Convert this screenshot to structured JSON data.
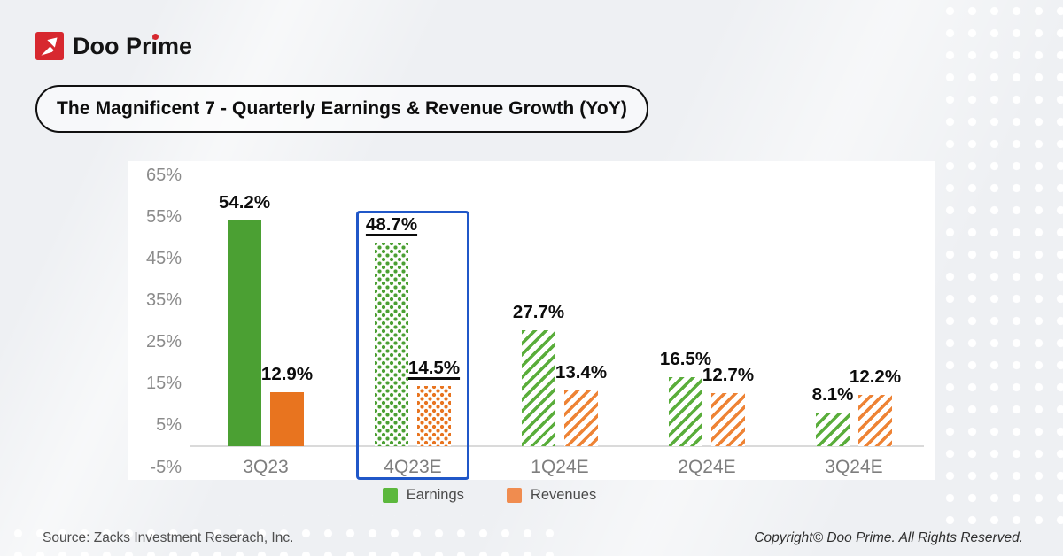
{
  "brand": {
    "logo_text": "Doo Prime"
  },
  "title": "The Magnificent 7 - Quarterly Earnings & Revenue Growth (YoY)",
  "legend": [
    {
      "label": "Earnings",
      "color": "#5cb83d"
    },
    {
      "label": "Revenues",
      "color": "#f08c4f"
    }
  ],
  "footer": {
    "source": "Source: Zacks Investment Reserach, Inc.",
    "copyright": "Copyright© Doo Prime. All Rights Reserved."
  },
  "chart_data": {
    "type": "bar",
    "title": "The Magnificent 7 - Quarterly Earnings & Revenue Growth (YoY)",
    "categories": [
      "3Q23",
      "4Q23E",
      "1Q24E",
      "2Q24E",
      "3Q24E"
    ],
    "series": [
      {
        "name": "Earnings",
        "color": "#4ba033",
        "values": [
          54.2,
          48.7,
          27.7,
          16.5,
          8.1
        ]
      },
      {
        "name": "Revenues",
        "color": "#e8741f",
        "values": [
          12.9,
          14.5,
          13.4,
          12.7,
          12.2
        ]
      }
    ],
    "category_styles": [
      "solid",
      "dots",
      "hatch",
      "hatch",
      "hatch"
    ],
    "highlighted_category": "4Q23E",
    "value_suffix": "%",
    "y_ticks": [
      65,
      55,
      45,
      35,
      25,
      15,
      5,
      -5
    ],
    "ylim": [
      -5,
      65
    ],
    "grid": false,
    "legend_position": "bottom"
  }
}
